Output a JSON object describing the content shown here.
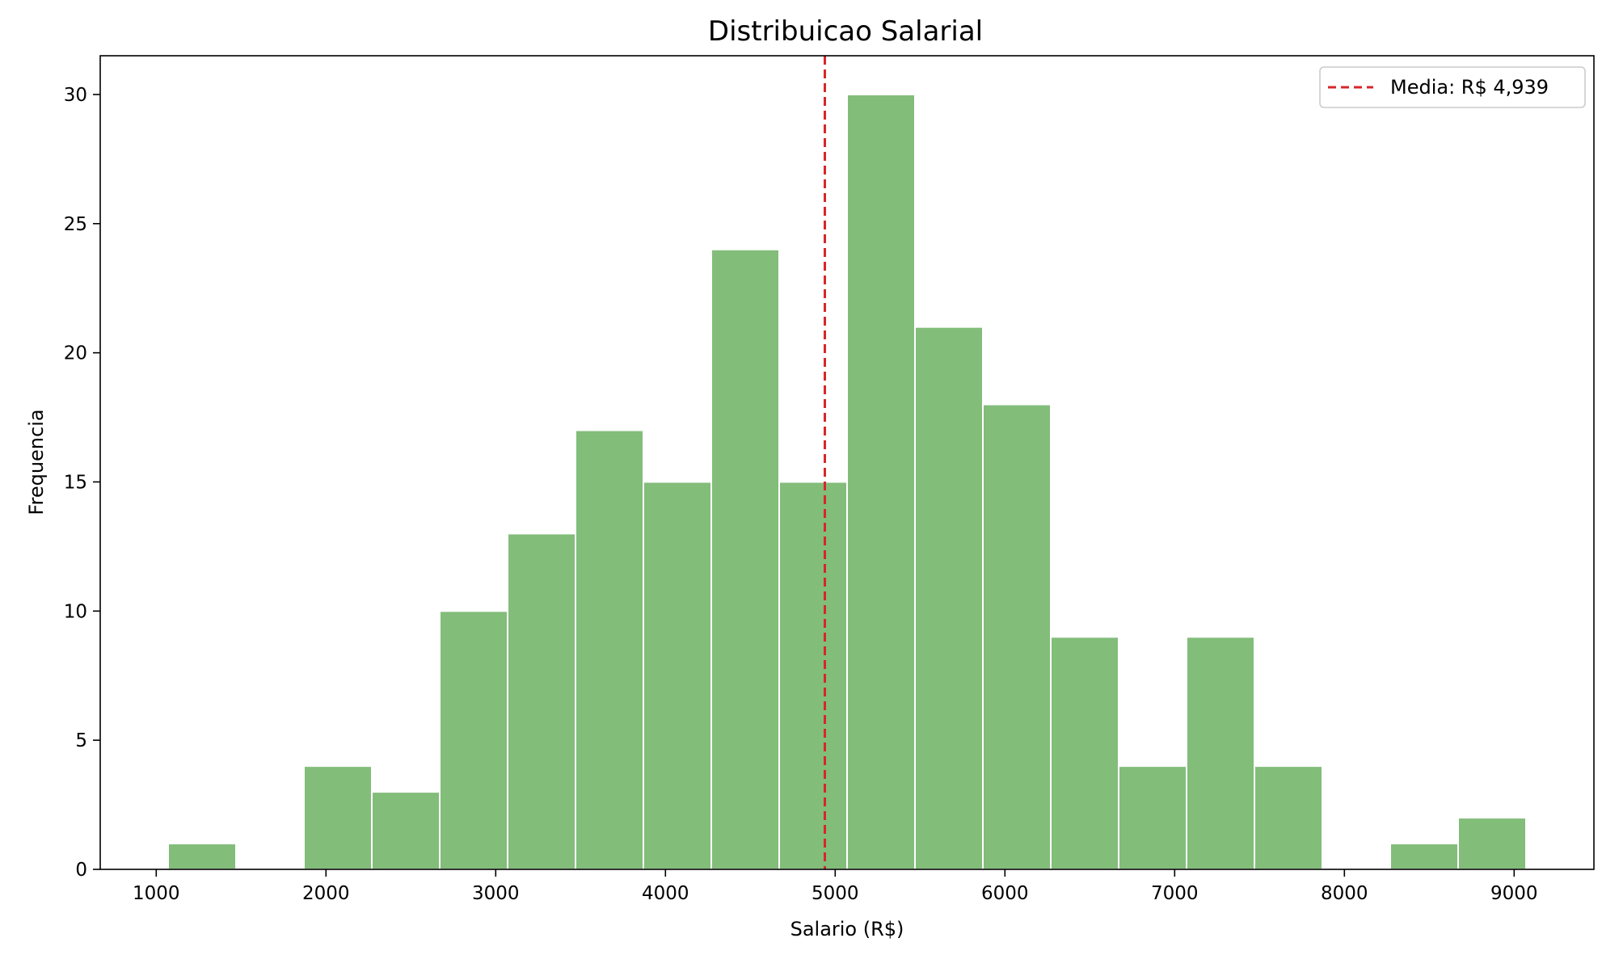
{
  "chart_data": {
    "type": "bar",
    "title": "Distribuicao Salarial",
    "xlabel": "Salario (R$)",
    "ylabel": "Frequencia",
    "xlim": [
      670,
      9470
    ],
    "ylim": [
      0,
      31.5
    ],
    "xticks": [
      1000,
      2000,
      3000,
      4000,
      5000,
      6000,
      7000,
      8000,
      9000
    ],
    "yticks": [
      0,
      5,
      10,
      15,
      20,
      25,
      30
    ],
    "bin_width": 400,
    "bins": [
      {
        "start": 1070,
        "count": 1
      },
      {
        "start": 1470,
        "count": 0
      },
      {
        "start": 1870,
        "count": 4
      },
      {
        "start": 2270,
        "count": 3
      },
      {
        "start": 2670,
        "count": 10
      },
      {
        "start": 3070,
        "count": 13
      },
      {
        "start": 3470,
        "count": 17
      },
      {
        "start": 3870,
        "count": 15
      },
      {
        "start": 4270,
        "count": 24
      },
      {
        "start": 4670,
        "count": 15
      },
      {
        "start": 5070,
        "count": 30
      },
      {
        "start": 5470,
        "count": 21
      },
      {
        "start": 5870,
        "count": 18
      },
      {
        "start": 6270,
        "count": 9
      },
      {
        "start": 6670,
        "count": 4
      },
      {
        "start": 7070,
        "count": 9
      },
      {
        "start": 7470,
        "count": 4
      },
      {
        "start": 7870,
        "count": 0
      },
      {
        "start": 8270,
        "count": 1
      },
      {
        "start": 8670,
        "count": 2
      }
    ],
    "mean_line": {
      "x": 4939,
      "label": "Media: R$ 4,939",
      "color": "#d62728"
    },
    "bar_color": "#82bd7a",
    "bar_edge_color": "#ffffff",
    "legend_position": "top-right",
    "grid": false
  }
}
